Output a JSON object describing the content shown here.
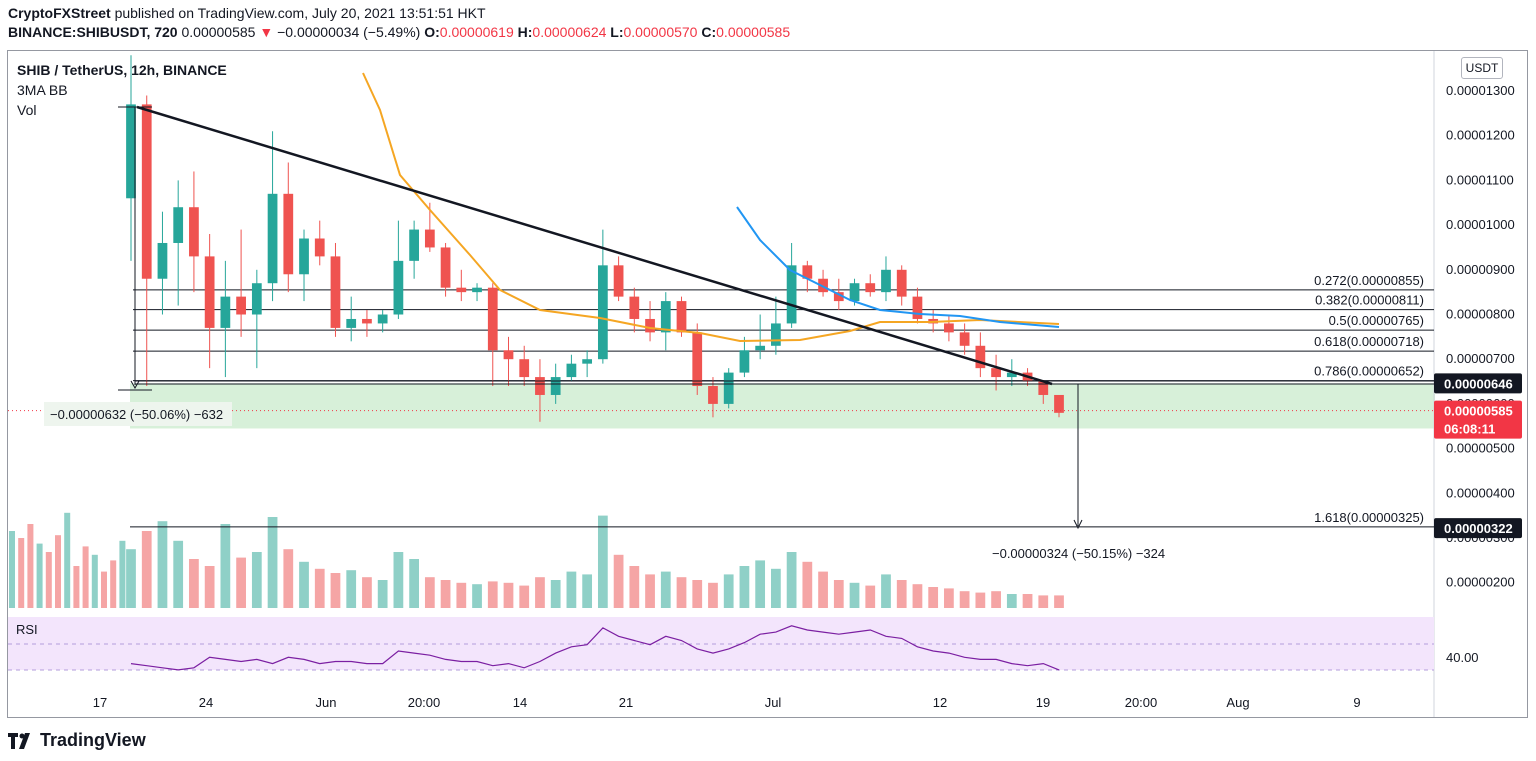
{
  "header": {
    "publisher": "CryptoFXStreet",
    "published_text": "published on TradingView.com, July 20, 2021 13:51:51 HKT",
    "symbol": "BINANCE:SHIBUSDT, 720",
    "last": "0.00000585",
    "change": "−0.00000034 (−5.49%)",
    "o_label": "O:",
    "o_value": "0.00000619",
    "h_label": "H:",
    "h_value": "0.00000624",
    "l_label": "L:",
    "l_value": "0.00000570",
    "c_label": "C:",
    "c_value": "0.00000585"
  },
  "legend": {
    "title": "SHIB / TetherUS, 12h, BINANCE",
    "indicator1": "3MA BB",
    "indicator2": "Vol"
  },
  "unit": "USDT",
  "rsi_label": "RSI",
  "footer": {
    "brand": "TradingView"
  },
  "colors": {
    "up": "#26a69a",
    "down": "#ef5350",
    "ma_orange": "#f5a623",
    "ma_blue": "#2196f3",
    "rsi_line": "#7b1fa2",
    "rsi_bg": "#f3e5fc",
    "zone": "#d7f0d9",
    "tag_red": "#f23645",
    "tag_black": "#131722"
  },
  "chart_data": {
    "type": "candlestick",
    "title": "SHIB / TetherUS, 12h, BINANCE",
    "price_ticks": [
      "0.00001300",
      "0.00001200",
      "0.00001100",
      "0.00001000",
      "0.00000900",
      "0.00000800",
      "0.00000700",
      "0.00000600",
      "0.00000500",
      "0.00000400",
      "0.00000300",
      "0.00000200"
    ],
    "price_tick_values": [
      1.3e-05,
      1.2e-05,
      1.1e-05,
      1e-05,
      9e-06,
      8e-06,
      7e-06,
      6e-06,
      5e-06,
      4e-06,
      3e-06,
      2e-06
    ],
    "time_ticks": [
      "17",
      "24",
      "Jun",
      "20:00",
      "14",
      "21",
      "Jul",
      "12",
      "19",
      "20:00",
      "Aug",
      "9"
    ],
    "fib_levels": [
      {
        "label": "0.272(0.00000855)",
        "value": 8.55e-06
      },
      {
        "label": "0.382(0.00000811)",
        "value": 8.11e-06
      },
      {
        "label": "0.5(0.00000765)",
        "value": 7.65e-06
      },
      {
        "label": "0.618(0.00000718)",
        "value": 7.18e-06
      },
      {
        "label": "0.786(0.00000652)",
        "value": 6.52e-06
      },
      {
        "label": "1.618(0.00000325)",
        "value": 3.25e-06
      }
    ],
    "price_tags": [
      {
        "text": "0.00000646",
        "value": 6.46e-06,
        "style": "black"
      },
      {
        "text": "0.00000585",
        "value": 5.85e-06,
        "style": "red"
      },
      {
        "text": "06:08:11",
        "style": "red"
      },
      {
        "text": "0.00000322",
        "value": 3.22e-06,
        "style": "black"
      }
    ],
    "measure_labels": [
      "−0.00000632 (−50.06%) −632",
      "−0.00000324 (−50.15%) −324"
    ],
    "rsi_tick": "40.00",
    "candles": [
      {
        "o": 1.06e-05,
        "h": 1.38e-05,
        "l": 9.2e-06,
        "c": 1.27e-05
      },
      {
        "o": 1.27e-05,
        "h": 1.29e-05,
        "l": 6.4e-06,
        "c": 8.8e-06
      },
      {
        "o": 8.8e-06,
        "h": 1.03e-05,
        "l": 8e-06,
        "c": 9.6e-06
      },
      {
        "o": 9.6e-06,
        "h": 1.1e-05,
        "l": 8.2e-06,
        "c": 1.04e-05
      },
      {
        "o": 1.04e-05,
        "h": 1.12e-05,
        "l": 8.5e-06,
        "c": 9.3e-06
      },
      {
        "o": 9.3e-06,
        "h": 9.8e-06,
        "l": 6.8e-06,
        "c": 7.7e-06
      },
      {
        "o": 7.7e-06,
        "h": 9.2e-06,
        "l": 6.6e-06,
        "c": 8.4e-06
      },
      {
        "o": 8.4e-06,
        "h": 9.9e-06,
        "l": 7.5e-06,
        "c": 8e-06
      },
      {
        "o": 8e-06,
        "h": 9e-06,
        "l": 6.8e-06,
        "c": 8.7e-06
      },
      {
        "o": 8.7e-06,
        "h": 1.21e-05,
        "l": 8.3e-06,
        "c": 1.07e-05
      },
      {
        "o": 1.07e-05,
        "h": 1.14e-05,
        "l": 8.5e-06,
        "c": 8.9e-06
      },
      {
        "o": 8.9e-06,
        "h": 9.9e-06,
        "l": 8.3e-06,
        "c": 9.7e-06
      },
      {
        "o": 9.7e-06,
        "h": 1.01e-05,
        "l": 9.1e-06,
        "c": 9.3e-06
      },
      {
        "o": 9.3e-06,
        "h": 9.6e-06,
        "l": 7.5e-06,
        "c": 7.7e-06
      },
      {
        "o": 7.7e-06,
        "h": 8.4e-06,
        "l": 7.4e-06,
        "c": 7.9e-06
      },
      {
        "o": 7.9e-06,
        "h": 8.1e-06,
        "l": 7.5e-06,
        "c": 7.8e-06
      },
      {
        "o": 7.8e-06,
        "h": 8.1e-06,
        "l": 7.6e-06,
        "c": 8e-06
      },
      {
        "o": 8e-06,
        "h": 1.01e-05,
        "l": 7.9e-06,
        "c": 9.2e-06
      },
      {
        "o": 9.2e-06,
        "h": 1.01e-05,
        "l": 8.8e-06,
        "c": 9.9e-06
      },
      {
        "o": 9.9e-06,
        "h": 1.05e-05,
        "l": 9.4e-06,
        "c": 9.5e-06
      },
      {
        "o": 9.5e-06,
        "h": 9.6e-06,
        "l": 8.4e-06,
        "c": 8.6e-06
      },
      {
        "o": 8.6e-06,
        "h": 9e-06,
        "l": 8.3e-06,
        "c": 8.5e-06
      },
      {
        "o": 8.5e-06,
        "h": 8.7e-06,
        "l": 8.3e-06,
        "c": 8.6e-06
      },
      {
        "o": 8.6e-06,
        "h": 8.7e-06,
        "l": 6.4e-06,
        "c": 7.2e-06
      },
      {
        "o": 7.2e-06,
        "h": 7.5e-06,
        "l": 6.4e-06,
        "c": 7e-06
      },
      {
        "o": 7e-06,
        "h": 7.3e-06,
        "l": 6.4e-06,
        "c": 6.6e-06
      },
      {
        "o": 6.6e-06,
        "h": 7e-06,
        "l": 5.6e-06,
        "c": 6.2e-06
      },
      {
        "o": 6.2e-06,
        "h": 6.9e-06,
        "l": 6e-06,
        "c": 6.6e-06
      },
      {
        "o": 6.6e-06,
        "h": 7.1e-06,
        "l": 6.5e-06,
        "c": 6.9e-06
      },
      {
        "o": 6.9e-06,
        "h": 7.2e-06,
        "l": 6.6e-06,
        "c": 7e-06
      },
      {
        "o": 7e-06,
        "h": 9.9e-06,
        "l": 6.9e-06,
        "c": 9.1e-06
      },
      {
        "o": 9.1e-06,
        "h": 9.3e-06,
        "l": 8.3e-06,
        "c": 8.4e-06
      },
      {
        "o": 8.4e-06,
        "h": 8.6e-06,
        "l": 7.6e-06,
        "c": 7.9e-06
      },
      {
        "o": 7.9e-06,
        "h": 8.3e-06,
        "l": 7.4e-06,
        "c": 7.6e-06
      },
      {
        "o": 7.6e-06,
        "h": 8.5e-06,
        "l": 7.2e-06,
        "c": 8.3e-06
      },
      {
        "o": 8.3e-06,
        "h": 8.4e-06,
        "l": 7.5e-06,
        "c": 7.6e-06
      },
      {
        "o": 7.6e-06,
        "h": 7.8e-06,
        "l": 6.2e-06,
        "c": 6.4e-06
      },
      {
        "o": 6.4e-06,
        "h": 6.6e-06,
        "l": 5.7e-06,
        "c": 6e-06
      },
      {
        "o": 6e-06,
        "h": 6.8e-06,
        "l": 5.9e-06,
        "c": 6.7e-06
      },
      {
        "o": 6.7e-06,
        "h": 7.5e-06,
        "l": 6.6e-06,
        "c": 7.2e-06
      },
      {
        "o": 7.2e-06,
        "h": 8e-06,
        "l": 7e-06,
        "c": 7.3e-06
      },
      {
        "o": 7.3e-06,
        "h": 8.4e-06,
        "l": 7.1e-06,
        "c": 7.8e-06
      },
      {
        "o": 7.8e-06,
        "h": 9.6e-06,
        "l": 7.7e-06,
        "c": 9.1e-06
      },
      {
        "o": 9.1e-06,
        "h": 9.2e-06,
        "l": 8.5e-06,
        "c": 8.8e-06
      },
      {
        "o": 8.8e-06,
        "h": 9e-06,
        "l": 8.4e-06,
        "c": 8.5e-06
      },
      {
        "o": 8.5e-06,
        "h": 8.8e-06,
        "l": 8.1e-06,
        "c": 8.3e-06
      },
      {
        "o": 8.3e-06,
        "h": 8.8e-06,
        "l": 8.2e-06,
        "c": 8.7e-06
      },
      {
        "o": 8.7e-06,
        "h": 8.9e-06,
        "l": 8.4e-06,
        "c": 8.5e-06
      },
      {
        "o": 8.5e-06,
        "h": 9.3e-06,
        "l": 8.3e-06,
        "c": 9e-06
      },
      {
        "o": 9e-06,
        "h": 9.1e-06,
        "l": 8.2e-06,
        "c": 8.4e-06
      },
      {
        "o": 8.4e-06,
        "h": 8.6e-06,
        "l": 7.8e-06,
        "c": 7.9e-06
      },
      {
        "o": 7.9e-06,
        "h": 8.1e-06,
        "l": 7.6e-06,
        "c": 7.8e-06
      },
      {
        "o": 7.8e-06,
        "h": 8e-06,
        "l": 7.4e-06,
        "c": 7.6e-06
      },
      {
        "o": 7.6e-06,
        "h": 7.8e-06,
        "l": 7.1e-06,
        "c": 7.3e-06
      },
      {
        "o": 7.3e-06,
        "h": 7.6e-06,
        "l": 6.6e-06,
        "c": 6.8e-06
      },
      {
        "o": 6.8e-06,
        "h": 7.1e-06,
        "l": 6.3e-06,
        "c": 6.6e-06
      },
      {
        "o": 6.6e-06,
        "h": 7e-06,
        "l": 6.4e-06,
        "c": 6.7e-06
      },
      {
        "o": 6.7e-06,
        "h": 6.8e-06,
        "l": 6.4e-06,
        "c": 6.5e-06
      },
      {
        "o": 6.5e-06,
        "h": 6.5e-06,
        "l": 6e-06,
        "c": 6.2e-06
      },
      {
        "o": 6.2e-06,
        "h": 6.2e-06,
        "l": 5.7e-06,
        "c": 5.8e-06
      }
    ],
    "volume": [
      0.42,
      0.55,
      0.62,
      0.48,
      0.35,
      0.3,
      0.6,
      0.36,
      0.4,
      0.65,
      0.42,
      0.33,
      0.28,
      0.25,
      0.27,
      0.22,
      0.2,
      0.4,
      0.35,
      0.22,
      0.2,
      0.18,
      0.17,
      0.19,
      0.18,
      0.16,
      0.22,
      0.2,
      0.26,
      0.24,
      0.66,
      0.38,
      0.3,
      0.24,
      0.26,
      0.22,
      0.2,
      0.18,
      0.24,
      0.3,
      0.34,
      0.28,
      0.4,
      0.33,
      0.26,
      0.2,
      0.18,
      0.16,
      0.24,
      0.2,
      0.17,
      0.15,
      0.14,
      0.12,
      0.11,
      0.12,
      0.1,
      0.1,
      0.09,
      0.09
    ],
    "rsi": [
      42,
      41,
      40,
      39,
      40,
      45,
      44,
      43,
      44,
      42,
      45,
      44,
      42,
      43,
      43,
      42,
      42,
      48,
      47,
      46,
      44,
      43,
      43,
      41,
      42,
      40,
      43,
      47,
      50,
      51,
      59,
      55,
      53,
      51,
      55,
      53,
      49,
      47,
      49,
      52,
      56,
      57,
      60,
      58,
      57,
      56,
      57,
      58,
      55,
      54,
      50,
      48,
      47,
      45,
      44,
      44,
      42,
      41,
      42,
      39
    ]
  }
}
